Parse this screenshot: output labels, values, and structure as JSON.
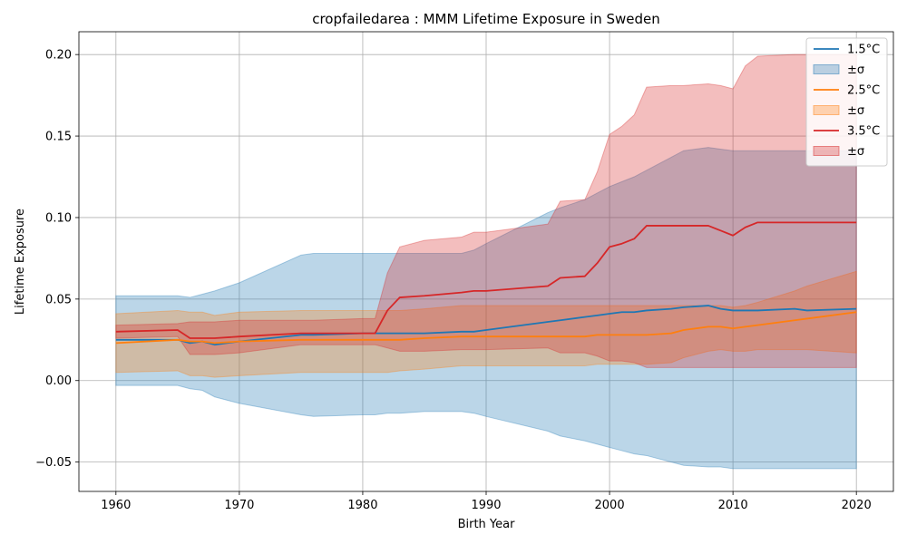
{
  "chart_data": {
    "type": "line",
    "title": "cropfailedarea : MMM Lifetime Exposure in Sweden",
    "xlabel": "Birth Year",
    "ylabel": "Lifetime Exposure",
    "xlim": [
      1957,
      2023
    ],
    "ylim": [
      -0.068,
      0.214
    ],
    "xticks": [
      1960,
      1970,
      1980,
      1990,
      2000,
      2010,
      2020
    ],
    "xtick_labels": [
      "1960",
      "1970",
      "1980",
      "1990",
      "2000",
      "2010",
      "2020"
    ],
    "yticks": [
      -0.05,
      0,
      0.05,
      0.1,
      0.15,
      0.2
    ],
    "ytick_labels": [
      "−0.05",
      "0.00",
      "0.05",
      "0.10",
      "0.15",
      "0.20"
    ],
    "grid": true,
    "legend_position": "top-right",
    "x": [
      1960,
      1965,
      1966,
      1967,
      1968,
      1970,
      1975,
      1976,
      1980,
      1981,
      1982,
      1983,
      1985,
      1988,
      1989,
      1990,
      1995,
      1996,
      1998,
      1999,
      2000,
      2001,
      2002,
      2003,
      2005,
      2006,
      2008,
      2009,
      2010,
      2011,
      2012,
      2015,
      2016,
      2020
    ],
    "series": [
      {
        "name": "1.5°C",
        "band_label": "±σ",
        "color": "#1f77b4",
        "band_color": "#1f77b4",
        "mean": [
          0.025,
          0.025,
          0.023,
          0.024,
          0.022,
          0.024,
          0.028,
          0.028,
          0.029,
          0.029,
          0.029,
          0.029,
          0.029,
          0.03,
          0.03,
          0.031,
          0.036,
          0.037,
          0.039,
          0.04,
          0.041,
          0.042,
          0.042,
          0.043,
          0.044,
          0.045,
          0.046,
          0.044,
          0.043,
          0.043,
          0.043,
          0.044,
          0.043,
          0.044
        ],
        "lower": [
          -0.003,
          -0.003,
          -0.005,
          -0.006,
          -0.01,
          -0.014,
          -0.021,
          -0.022,
          -0.021,
          -0.021,
          -0.02,
          -0.02,
          -0.019,
          -0.019,
          -0.02,
          -0.022,
          -0.031,
          -0.034,
          -0.037,
          -0.039,
          -0.041,
          -0.043,
          -0.045,
          -0.046,
          -0.05,
          -0.052,
          -0.053,
          -0.053,
          -0.054,
          -0.054,
          -0.054,
          -0.054,
          -0.054,
          -0.054
        ],
        "upper": [
          0.052,
          0.052,
          0.051,
          0.053,
          0.055,
          0.06,
          0.077,
          0.078,
          0.078,
          0.078,
          0.078,
          0.078,
          0.078,
          0.078,
          0.08,
          0.084,
          0.103,
          0.106,
          0.111,
          0.115,
          0.119,
          0.122,
          0.125,
          0.129,
          0.137,
          0.141,
          0.143,
          0.142,
          0.141,
          0.141,
          0.141,
          0.141,
          0.141,
          0.141
        ]
      },
      {
        "name": "2.5°C",
        "band_label": "±σ",
        "color": "#ff7f0e",
        "band_color": "#ff7f0e",
        "mean": [
          0.023,
          0.025,
          0.024,
          0.024,
          0.023,
          0.024,
          0.025,
          0.025,
          0.025,
          0.025,
          0.025,
          0.025,
          0.026,
          0.027,
          0.027,
          0.027,
          0.027,
          0.027,
          0.027,
          0.028,
          0.028,
          0.028,
          0.028,
          0.028,
          0.029,
          0.031,
          0.033,
          0.033,
          0.032,
          0.033,
          0.034,
          0.037,
          0.038,
          0.042
        ],
        "lower": [
          0.005,
          0.006,
          0.003,
          0.003,
          0.002,
          0.003,
          0.005,
          0.005,
          0.005,
          0.005,
          0.005,
          0.006,
          0.007,
          0.009,
          0.009,
          0.009,
          0.009,
          0.009,
          0.009,
          0.01,
          0.01,
          0.01,
          0.01,
          0.01,
          0.011,
          0.014,
          0.018,
          0.019,
          0.018,
          0.018,
          0.019,
          0.019,
          0.019,
          0.017
        ],
        "upper": [
          0.041,
          0.043,
          0.042,
          0.042,
          0.04,
          0.042,
          0.043,
          0.043,
          0.043,
          0.043,
          0.043,
          0.043,
          0.044,
          0.046,
          0.046,
          0.046,
          0.046,
          0.046,
          0.046,
          0.046,
          0.046,
          0.046,
          0.046,
          0.046,
          0.046,
          0.046,
          0.046,
          0.046,
          0.045,
          0.046,
          0.048,
          0.055,
          0.058,
          0.067
        ]
      },
      {
        "name": "3.5°C",
        "band_label": "±σ",
        "color": "#d62728",
        "band_color": "#d62728",
        "mean": [
          0.03,
          0.031,
          0.026,
          0.026,
          0.026,
          0.027,
          0.029,
          0.029,
          0.029,
          0.029,
          0.043,
          0.051,
          0.052,
          0.054,
          0.055,
          0.055,
          0.058,
          0.063,
          0.064,
          0.072,
          0.082,
          0.084,
          0.087,
          0.095,
          0.095,
          0.095,
          0.095,
          0.092,
          0.089,
          0.094,
          0.097,
          0.097,
          0.097,
          0.097
        ],
        "lower": [
          0.026,
          0.027,
          0.016,
          0.016,
          0.016,
          0.017,
          0.022,
          0.022,
          0.022,
          0.022,
          0.02,
          0.018,
          0.018,
          0.019,
          0.019,
          0.019,
          0.02,
          0.017,
          0.017,
          0.015,
          0.012,
          0.012,
          0.011,
          0.008,
          0.008,
          0.008,
          0.008,
          0.008,
          0.008,
          0.008,
          0.008,
          0.008,
          0.008,
          0.008
        ],
        "upper": [
          0.034,
          0.035,
          0.036,
          0.036,
          0.036,
          0.037,
          0.037,
          0.037,
          0.038,
          0.038,
          0.066,
          0.082,
          0.086,
          0.088,
          0.091,
          0.091,
          0.096,
          0.11,
          0.111,
          0.128,
          0.151,
          0.156,
          0.163,
          0.18,
          0.181,
          0.181,
          0.182,
          0.181,
          0.179,
          0.193,
          0.199,
          0.2,
          0.2,
          0.2
        ]
      }
    ]
  }
}
